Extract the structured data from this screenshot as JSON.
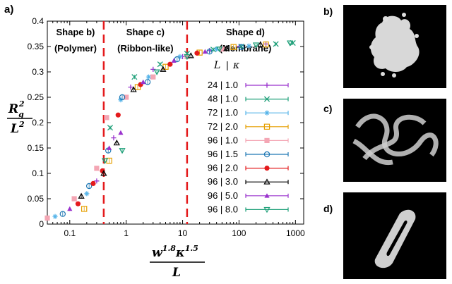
{
  "panel_labels": {
    "a": "a)",
    "b": "b)",
    "c": "c)",
    "d": "d)"
  },
  "region_labels": [
    {
      "line1": "Shape b)",
      "line2": "(Polymer)"
    },
    {
      "line1": "Shape c)",
      "line2": "(Ribbon-like)"
    },
    {
      "line1": "Shape d)",
      "line2": "(Membrane)"
    }
  ],
  "legend_header": {
    "L": "L",
    "sep": "|",
    "kappa": "κ"
  },
  "chart_data": {
    "type": "scatter",
    "x_scale": "log",
    "xlim": [
      0.04,
      1400
    ],
    "ylim": [
      0,
      0.4
    ],
    "xticks": [
      {
        "value": 0.1,
        "label": "0.1"
      },
      {
        "value": 1,
        "label": "1"
      },
      {
        "value": 10,
        "label": "10"
      },
      {
        "value": 100,
        "label": "100"
      },
      {
        "value": 1000,
        "label": "1000"
      }
    ],
    "yticks": [
      0,
      0.05,
      0.1,
      0.15,
      0.2,
      0.25,
      0.3,
      0.35,
      0.4
    ],
    "ytick_labels": [
      "0",
      "0.05",
      "0.1",
      "0.15",
      "0.2",
      "0.25",
      "0.3",
      "0.35",
      "0.4"
    ],
    "ylabel": {
      "num": "R",
      "num_sub": "g",
      "num_sup": "2",
      "den": "L",
      "den_sup": "2"
    },
    "xlabel": {
      "num": "w",
      "num_sup1": "1.8",
      "num_mid": "κ",
      "num_sup2": "1.5",
      "den": "L"
    },
    "vlines": [
      0.4,
      12
    ],
    "series": [
      {
        "name": "24 | 1.0",
        "color": "#9a32cd",
        "marker": "plus",
        "points": [
          [
            0.3,
            0.085
          ],
          [
            0.6,
            0.17
          ],
          [
            1.2,
            0.27
          ],
          [
            3,
            0.305
          ],
          [
            10,
            0.33
          ],
          [
            30,
            0.342
          ],
          [
            100,
            0.35
          ],
          [
            300,
            0.355
          ]
        ]
      },
      {
        "name": "48 | 1.0",
        "color": "#1b9e77",
        "marker": "x",
        "points": [
          [
            0.52,
            0.19
          ],
          [
            1.4,
            0.29
          ],
          [
            4,
            0.315
          ],
          [
            12,
            0.336
          ],
          [
            35,
            0.344
          ],
          [
            110,
            0.35
          ],
          [
            450,
            0.355
          ],
          [
            900,
            0.357
          ]
        ]
      },
      {
        "name": "72 | 1.0",
        "color": "#56b4e9",
        "marker": "star",
        "points": [
          [
            0.055,
            0.015
          ],
          [
            0.2,
            0.06
          ],
          [
            0.8,
            0.245
          ],
          [
            2.5,
            0.29
          ],
          [
            9,
            0.33
          ],
          [
            40,
            0.345
          ],
          [
            150,
            0.351
          ]
        ]
      },
      {
        "name": "72 | 2.0",
        "color": "#e69f00",
        "marker": "square",
        "points": [
          [
            0.18,
            0.03
          ],
          [
            0.5,
            0.125
          ],
          [
            1.6,
            0.27
          ],
          [
            5,
            0.31
          ],
          [
            20,
            0.338
          ],
          [
            80,
            0.349
          ],
          [
            300,
            0.354
          ]
        ]
      },
      {
        "name": "96 | 1.0",
        "color": "#f4a6b4",
        "marker": "squarefill",
        "points": [
          [
            0.04,
            0.012
          ],
          [
            0.12,
            0.05
          ],
          [
            0.3,
            0.11
          ],
          [
            0.45,
            0.21
          ],
          [
            1,
            0.25
          ],
          [
            3,
            0.29
          ],
          [
            12,
            0.33
          ],
          [
            50,
            0.345
          ]
        ]
      },
      {
        "name": "96 | 1.5",
        "color": "#1f78b4",
        "marker": "circle",
        "points": [
          [
            0.075,
            0.02
          ],
          [
            0.22,
            0.075
          ],
          [
            0.48,
            0.145
          ],
          [
            0.85,
            0.25
          ],
          [
            2.4,
            0.28
          ],
          [
            8,
            0.325
          ],
          [
            30,
            0.34
          ],
          [
            110,
            0.349
          ]
        ]
      },
      {
        "name": "96 | 2.0",
        "color": "#e41a1c",
        "marker": "circlefill",
        "points": [
          [
            0.14,
            0.04
          ],
          [
            0.26,
            0.08
          ],
          [
            0.38,
            0.105
          ],
          [
            0.72,
            0.215
          ],
          [
            1.8,
            0.275
          ],
          [
            6,
            0.315
          ],
          [
            18,
            0.337
          ]
        ]
      },
      {
        "name": "96 | 3.0",
        "color": "#000000",
        "marker": "triangle",
        "points": [
          [
            0.16,
            0.055
          ],
          [
            0.4,
            0.1
          ],
          [
            0.68,
            0.16
          ],
          [
            1.35,
            0.265
          ],
          [
            4.5,
            0.305
          ],
          [
            14,
            0.332
          ],
          [
            60,
            0.346
          ],
          [
            240,
            0.354
          ]
        ]
      },
      {
        "name": "96 | 5.0",
        "color": "#9a32cd",
        "marker": "trianglefill",
        "points": [
          [
            0.1,
            0.03
          ],
          [
            0.5,
            0.15
          ],
          [
            0.8,
            0.18
          ],
          [
            2,
            0.28
          ],
          [
            7,
            0.322
          ],
          [
            25,
            0.34
          ]
        ]
      },
      {
        "name": "96 | 8.0",
        "color": "#1b9e77",
        "marker": "tridown",
        "points": [
          [
            0.42,
            0.125
          ],
          [
            0.85,
            0.145
          ],
          [
            3.5,
            0.3
          ],
          [
            12,
            0.33
          ],
          [
            45,
            0.345
          ],
          [
            200,
            0.353
          ],
          [
            800,
            0.357
          ]
        ]
      }
    ]
  }
}
